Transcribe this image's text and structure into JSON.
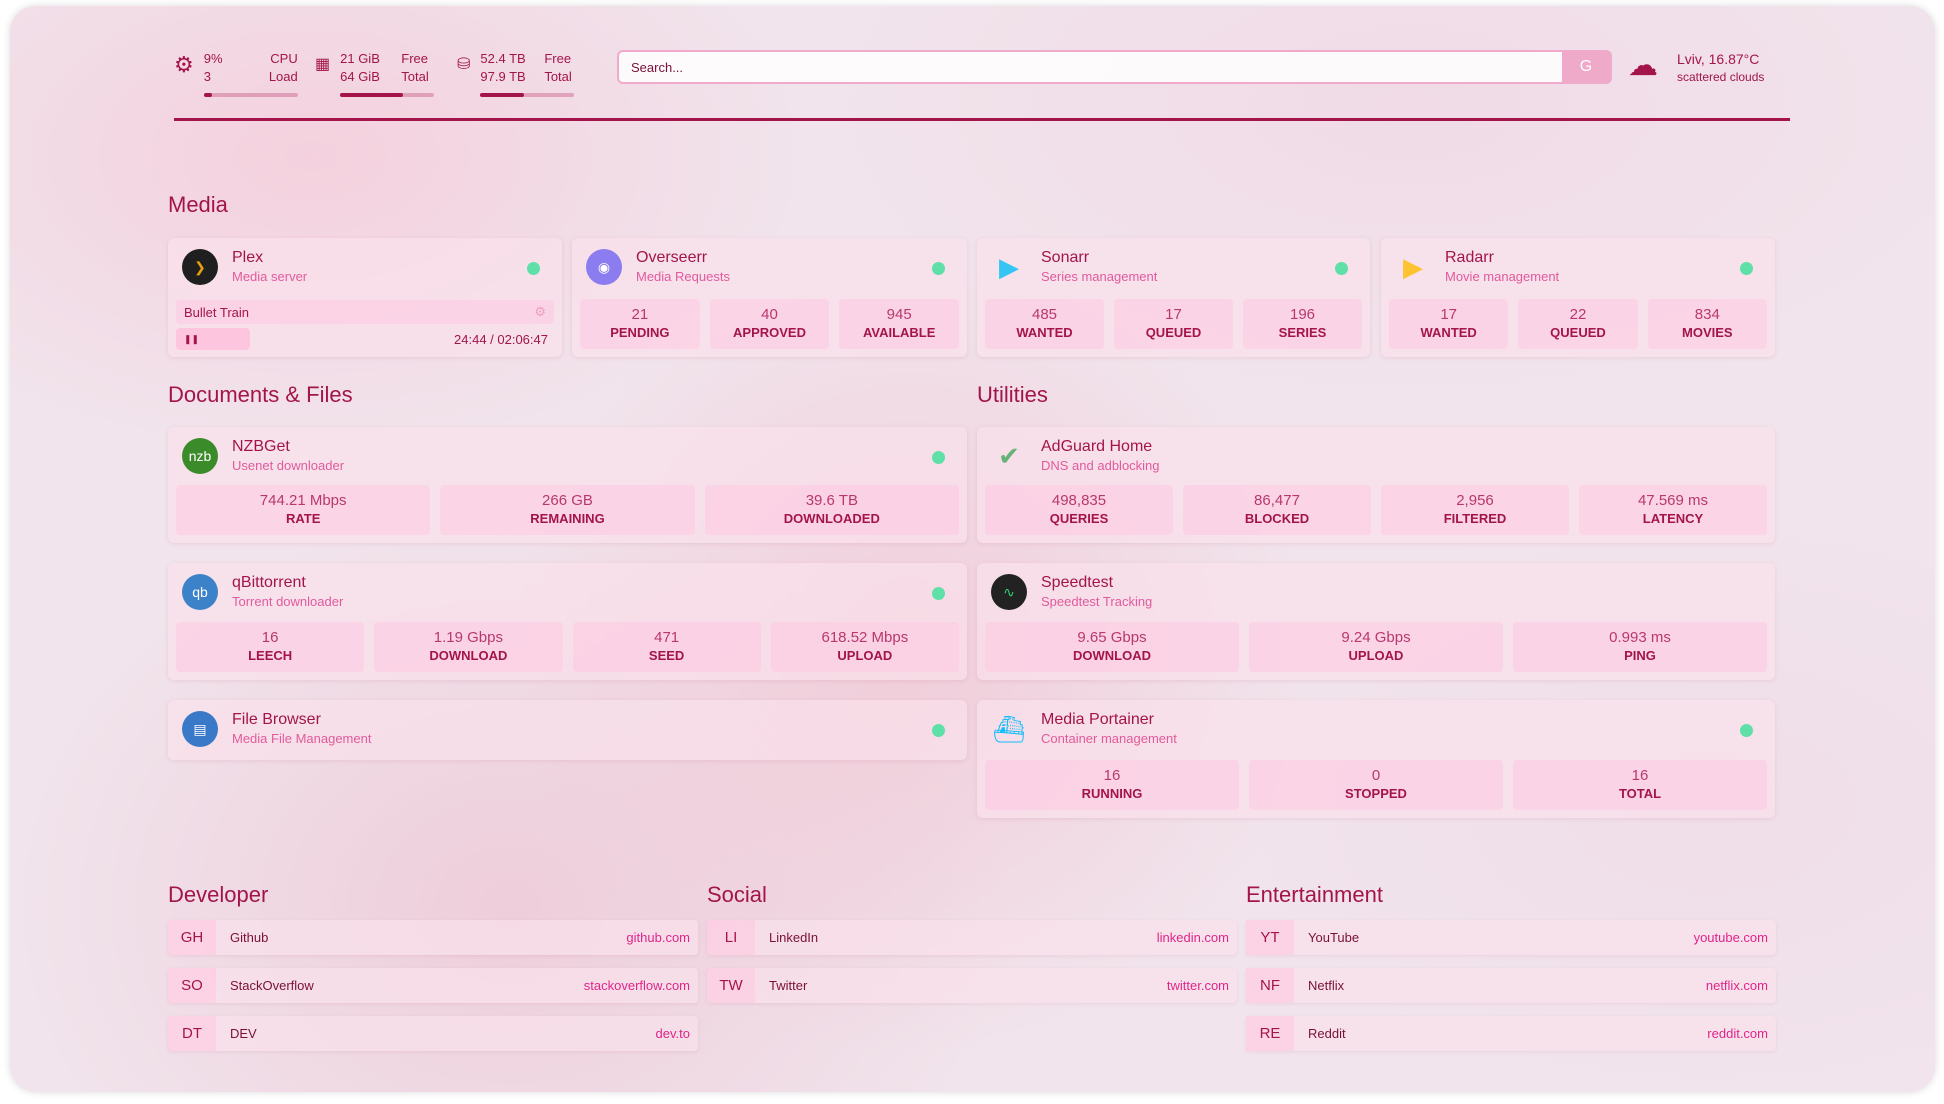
{
  "header": {
    "cpu": {
      "value": "9%",
      "cores": "3",
      "label1": "CPU",
      "label2": "Load",
      "fill": 0.09
    },
    "memory": {
      "used": "21 GiB",
      "total": "64 GiB",
      "label1": "Free",
      "label2": "Total",
      "fill": 0.67
    },
    "disk": {
      "used": "52.4 TB",
      "total": "97.9 TB",
      "label1": "Free",
      "label2": "Total",
      "fill": 0.46
    },
    "search": {
      "placeholder": "Search...",
      "engine_label": "G"
    },
    "weather": {
      "location": "Lviv, 16.87°C",
      "description": "scattered clouds",
      "icon": "cloud-icon"
    }
  },
  "media": {
    "title": "Media",
    "plex": {
      "name": "Plex",
      "desc": "Media server",
      "now_playing": "Bullet Train",
      "time": "24:44 / 02:06:47",
      "progress": 0.195
    },
    "overseerr": {
      "name": "Overseerr",
      "desc": "Media Requests",
      "stats": [
        {
          "v": "21",
          "l": "PENDING"
        },
        {
          "v": "40",
          "l": "APPROVED"
        },
        {
          "v": "945",
          "l": "AVAILABLE"
        }
      ]
    },
    "sonarr": {
      "name": "Sonarr",
      "desc": "Series management",
      "stats": [
        {
          "v": "485",
          "l": "WANTED"
        },
        {
          "v": "17",
          "l": "QUEUED"
        },
        {
          "v": "196",
          "l": "SERIES"
        }
      ]
    },
    "radarr": {
      "name": "Radarr",
      "desc": "Movie management",
      "stats": [
        {
          "v": "17",
          "l": "WANTED"
        },
        {
          "v": "22",
          "l": "QUEUED"
        },
        {
          "v": "834",
          "l": "MOVIES"
        }
      ]
    }
  },
  "docs": {
    "title": "Documents & Files",
    "nzbget": {
      "name": "NZBGet",
      "desc": "Usenet downloader",
      "icon_text": "nzbget",
      "stats": [
        {
          "v": "744.21 Mbps",
          "l": "RATE"
        },
        {
          "v": "266 GB",
          "l": "REMAINING"
        },
        {
          "v": "39.6 TB",
          "l": "DOWNLOADED"
        }
      ]
    },
    "qbittorrent": {
      "name": "qBittorrent",
      "desc": "Torrent downloader",
      "icon_text": "qb",
      "stats": [
        {
          "v": "16",
          "l": "LEECH"
        },
        {
          "v": "1.19 Gbps",
          "l": "DOWNLOAD"
        },
        {
          "v": "471",
          "l": "SEED"
        },
        {
          "v": "618.52 Mbps",
          "l": "UPLOAD"
        }
      ]
    },
    "filebrowser": {
      "name": "File Browser",
      "desc": "Media File Management"
    }
  },
  "utilities": {
    "title": "Utilities",
    "adguard": {
      "name": "AdGuard Home",
      "desc": "DNS and adblocking",
      "stats": [
        {
          "v": "498,835",
          "l": "QUERIES"
        },
        {
          "v": "86,477",
          "l": "BLOCKED"
        },
        {
          "v": "2,956",
          "l": "FILTERED"
        },
        {
          "v": "47.569 ms",
          "l": "LATENCY"
        }
      ]
    },
    "speedtest": {
      "name": "Speedtest",
      "desc": "Speedtest Tracking",
      "stats": [
        {
          "v": "9.65 Gbps",
          "l": "DOWNLOAD"
        },
        {
          "v": "9.24 Gbps",
          "l": "UPLOAD"
        },
        {
          "v": "0.993 ms",
          "l": "PING"
        }
      ]
    },
    "portainer": {
      "name": "Media Portainer",
      "desc": "Container management",
      "stats": [
        {
          "v": "16",
          "l": "RUNNING"
        },
        {
          "v": "0",
          "l": "STOPPED"
        },
        {
          "v": "16",
          "l": "TOTAL"
        }
      ]
    }
  },
  "bookmarks": [
    {
      "title": "Developer",
      "items": [
        {
          "abbr": "GH",
          "name": "Github",
          "url": "github.com"
        },
        {
          "abbr": "SO",
          "name": "StackOverflow",
          "url": "stackoverflow.com"
        },
        {
          "abbr": "DT",
          "name": "DEV",
          "url": "dev.to"
        }
      ]
    },
    {
      "title": "Social",
      "items": [
        {
          "abbr": "LI",
          "name": "LinkedIn",
          "url": "linkedin.com"
        },
        {
          "abbr": "TW",
          "name": "Twitter",
          "url": "twitter.com"
        }
      ]
    },
    {
      "title": "Entertainment",
      "items": [
        {
          "abbr": "YT",
          "name": "YouTube",
          "url": "youtube.com"
        },
        {
          "abbr": "NF",
          "name": "Netflix",
          "url": "netflix.com"
        },
        {
          "abbr": "RE",
          "name": "Reddit",
          "url": "reddit.com"
        }
      ]
    }
  ],
  "colors": {
    "primary": "#a3154a",
    "accent": "#e25a9c",
    "status_ok": "#5fe0a8"
  }
}
